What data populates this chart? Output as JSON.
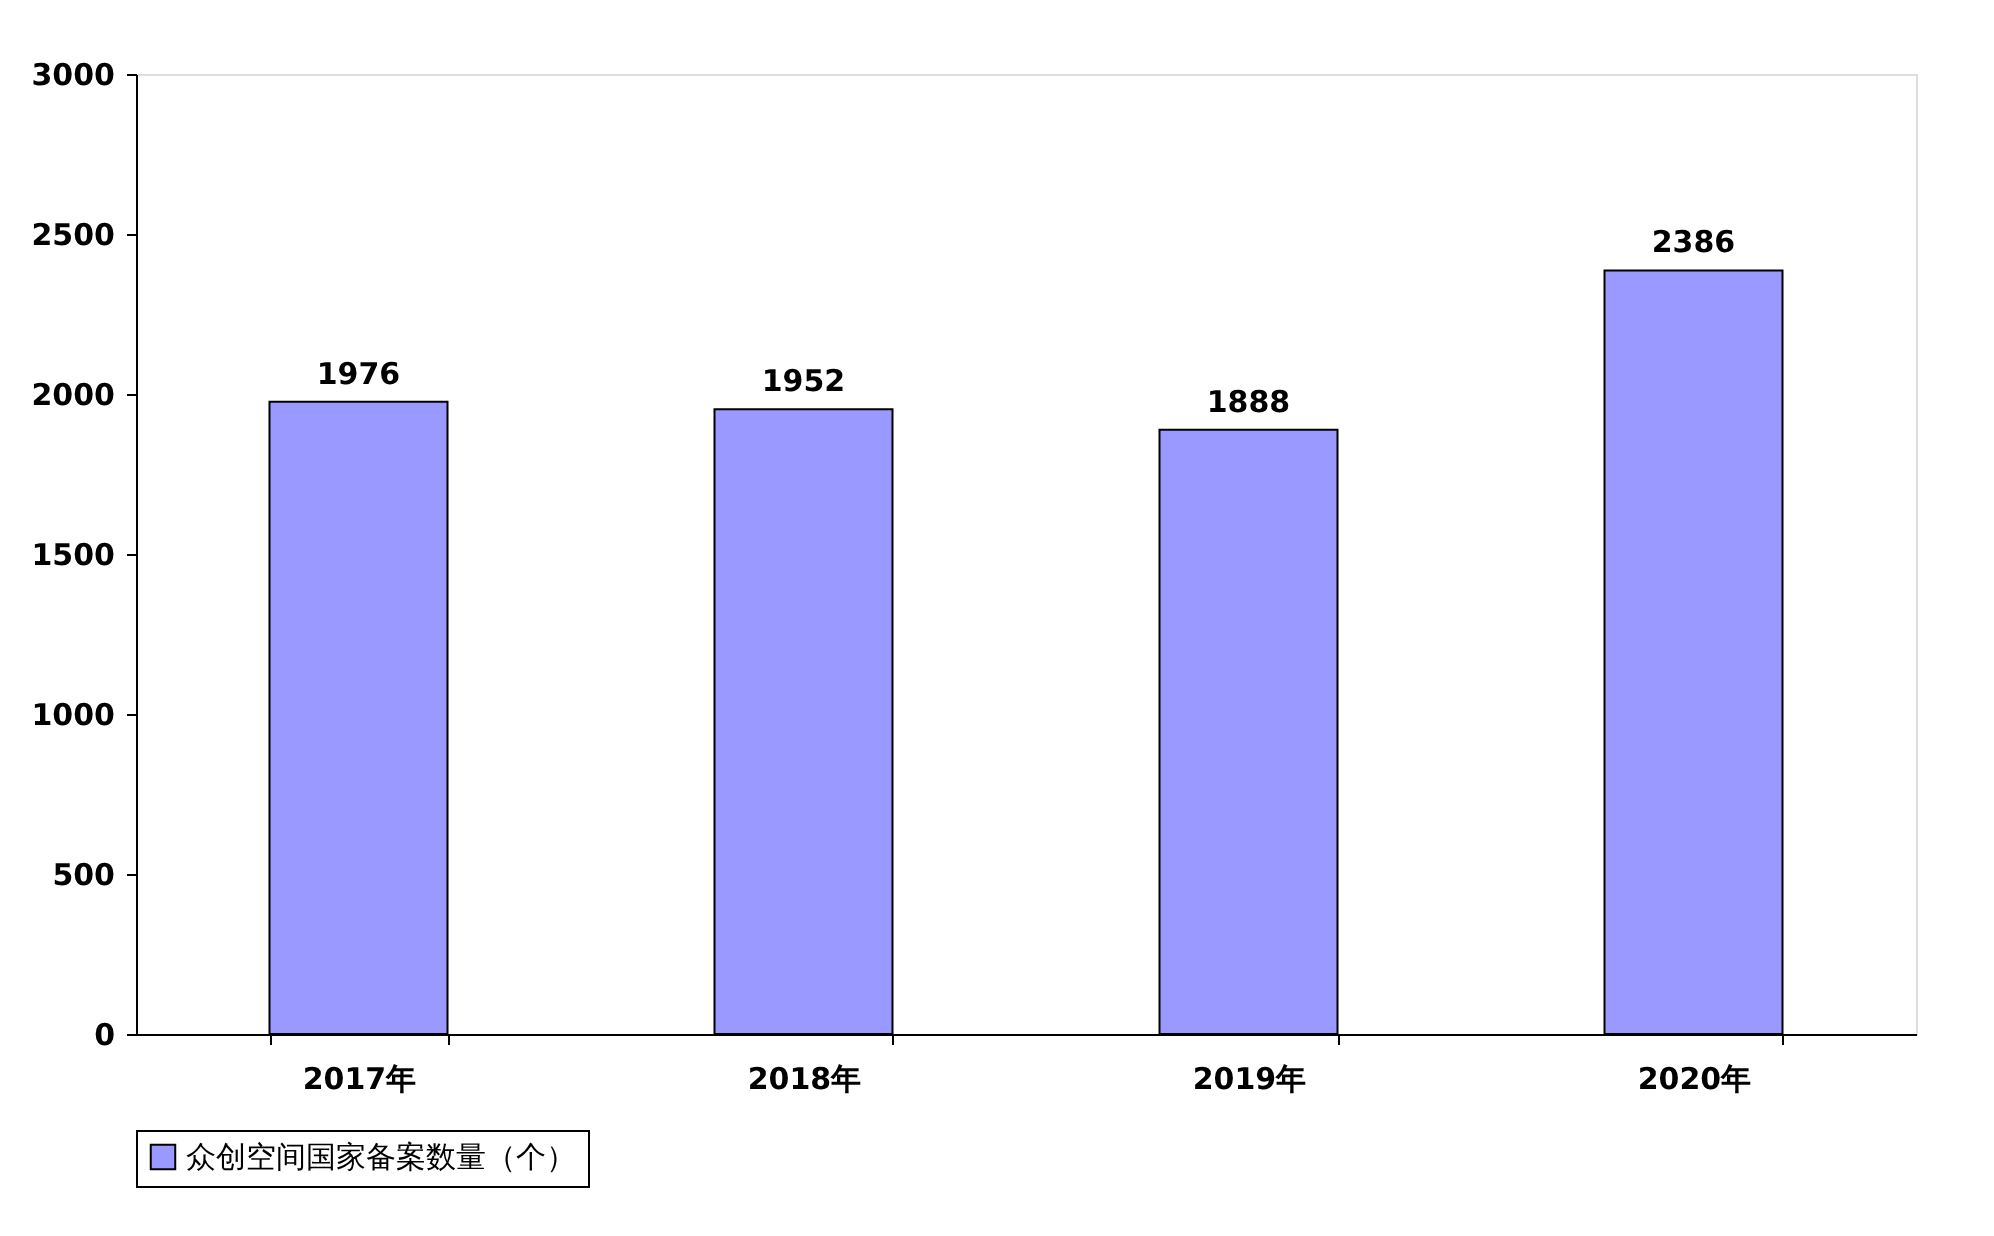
{
  "chart_data": {
    "type": "bar",
    "categories": [
      "2017年",
      "2018年",
      "2019年",
      "2020年"
    ],
    "series": [
      {
        "name": "众创空间国家备案数量（个）",
        "color": "#9999ff",
        "values": [
          1976,
          1952,
          1888,
          2386
        ]
      }
    ],
    "ylim": [
      0,
      3000
    ],
    "yticks": [
      0,
      500,
      1000,
      1500,
      2000,
      2500,
      3000
    ],
    "grid": false,
    "legend": "bottom",
    "data_labels": true
  }
}
